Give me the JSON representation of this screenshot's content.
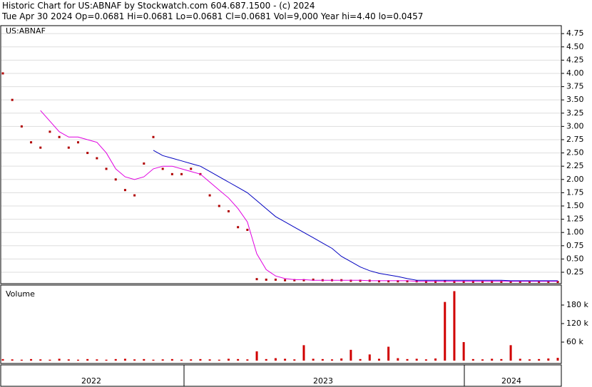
{
  "header": {
    "title": "Historic Chart for US:ABNAF by Stockwatch.com 604.687.1500 - (c) 2024",
    "subtitle": "Tue Apr 30 2024  Op=0.0681  Hi=0.0681  Lo=0.0681  Cl=0.0681  Vol=9,000  Year hi=4.40  lo=0.0457"
  },
  "chart_data": [
    {
      "type": "line",
      "title": "US:ABNAF",
      "categories": [
        null,
        null,
        null,
        null,
        null,
        null,
        null,
        null,
        null,
        null,
        null,
        null,
        null,
        null,
        null,
        null,
        null,
        null,
        null,
        null,
        null,
        null,
        null,
        null,
        null,
        null,
        null,
        null,
        null,
        null,
        null,
        null,
        null,
        null,
        null,
        null,
        null,
        null,
        null,
        null,
        null,
        null,
        null,
        null,
        null,
        null,
        null,
        null,
        null,
        null,
        null,
        null,
        null,
        null,
        null,
        null,
        null,
        null,
        null,
        null
      ],
      "x_groups": [
        "2022",
        "2023",
        "2024"
      ],
      "ylim": [
        0.035,
        4.9
      ],
      "yticks": [
        0.25,
        {
          "value": 0.5,
          "label": "0.50"
        },
        0.75,
        {
          "value": 1,
          "label": "1.00"
        },
        1.25,
        {
          "value": 1.5,
          "label": "1.50"
        },
        1.75,
        {
          "value": 2,
          "label": "2.00"
        },
        2.25,
        {
          "value": 2.5,
          "label": "2.50"
        },
        2.75,
        {
          "value": 3,
          "label": "3.00"
        },
        3.25,
        {
          "value": 3.5,
          "label": "3.50"
        },
        3.75,
        {
          "value": 4,
          "label": "4.00"
        },
        4.25,
        {
          "value": 4.5,
          "label": "4.50"
        },
        4.75
      ],
      "grid": true,
      "series": [
        {
          "color": "#b00000",
          "values": [
            4.0,
            3.5,
            3.0,
            2.7,
            2.6,
            2.9,
            2.8,
            2.6,
            2.7,
            2.5,
            2.4,
            2.2,
            2.0,
            1.8,
            1.7,
            2.3,
            2.8,
            2.2,
            2.1,
            2.1,
            2.2,
            2.1,
            1.7,
            1.5,
            1.4,
            1.1,
            1.05,
            0.12,
            0.11,
            0.11,
            0.1,
            0.1,
            0.1,
            0.11,
            0.1,
            0.1,
            0.1,
            0.09,
            0.09,
            0.09,
            0.08,
            0.08,
            0.08,
            0.08,
            0.08,
            0.07,
            0.07,
            0.08,
            0.07,
            0.07,
            0.07,
            0.07,
            0.07,
            0.07,
            0.07,
            0.07,
            0.07,
            0.07,
            0.07,
            0.0681
          ]
        },
        {
          "color": "#e000e0",
          "values": [
            null,
            null,
            null,
            null,
            3.3,
            3.1,
            2.9,
            2.8,
            2.8,
            2.75,
            2.7,
            2.5,
            2.2,
            2.05,
            2.0,
            2.05,
            2.2,
            2.25,
            2.25,
            2.2,
            2.15,
            2.1,
            1.95,
            1.8,
            1.65,
            1.45,
            1.2,
            0.6,
            0.3,
            0.18,
            0.13,
            0.11,
            0.11,
            0.1,
            0.1,
            0.1,
            0.1,
            0.1,
            0.1,
            0.09,
            0.09,
            0.09,
            0.09,
            0.09,
            0.08,
            0.08,
            0.08,
            0.08,
            0.08,
            0.08,
            0.08,
            0.08,
            0.08,
            0.08,
            0.08,
            0.08,
            0.08,
            0.08,
            0.08,
            0.08
          ]
        },
        {
          "color": "#0000c0",
          "values": [
            null,
            null,
            null,
            null,
            null,
            null,
            null,
            null,
            null,
            null,
            null,
            null,
            null,
            null,
            null,
            null,
            2.55,
            2.45,
            2.4,
            2.35,
            2.3,
            2.25,
            2.15,
            2.05,
            1.95,
            1.85,
            1.75,
            1.6,
            1.45,
            1.3,
            1.2,
            1.1,
            1.0,
            0.9,
            0.8,
            0.7,
            0.55,
            0.45,
            0.35,
            0.28,
            0.23,
            0.2,
            0.17,
            0.13,
            0.1,
            0.1,
            0.1,
            0.1,
            0.1,
            0.1,
            0.1,
            0.1,
            0.1,
            0.1,
            0.09,
            0.09,
            0.09,
            0.09,
            0.09,
            0.09
          ]
        }
      ]
    },
    {
      "type": "bar",
      "title": "Volume",
      "ylim": [
        0,
        240000
      ],
      "yticks": [
        {
          "value": 60000,
          "label": "60 k"
        },
        {
          "value": 120000,
          "label": "120 k"
        },
        {
          "value": 180000,
          "label": "180 k"
        }
      ],
      "color": "#d00000",
      "values": [
        5000,
        4000,
        3000,
        5000,
        4000,
        3000,
        6000,
        4000,
        3000,
        5000,
        4000,
        3000,
        5000,
        6000,
        4000,
        5000,
        3000,
        4000,
        5000,
        3000,
        4000,
        5000,
        4000,
        3000,
        6000,
        5000,
        4000,
        30000,
        5000,
        8000,
        6000,
        4000,
        50000,
        6000,
        5000,
        4000,
        7000,
        35000,
        5000,
        20000,
        6000,
        45000,
        8000,
        5000,
        6000,
        4000,
        7000,
        190000,
        225000,
        60000,
        5000,
        4000,
        6000,
        5000,
        50000,
        6000,
        4000,
        5000,
        7000,
        9000
      ]
    }
  ]
}
